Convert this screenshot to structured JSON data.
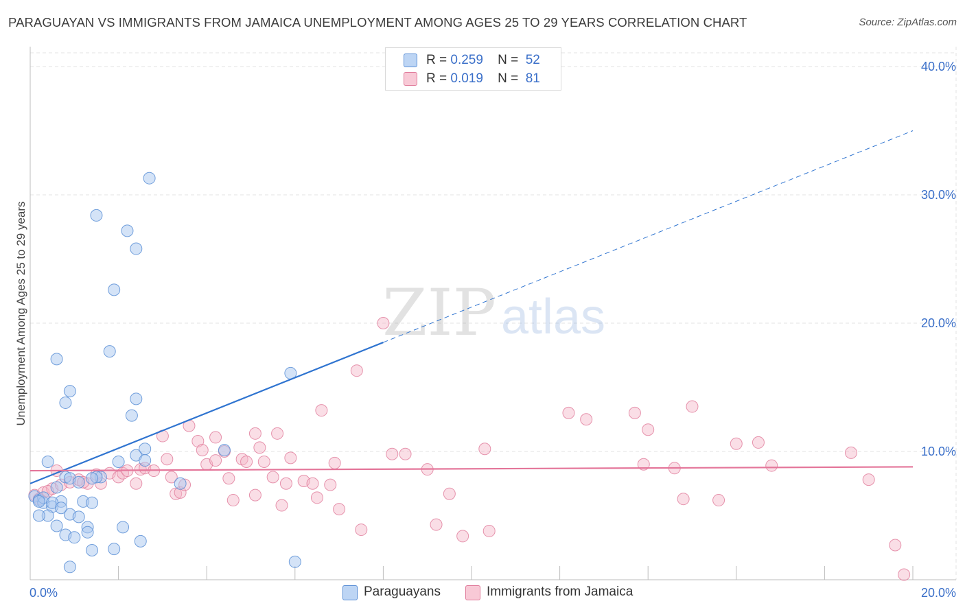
{
  "header": {
    "title": "PARAGUAYAN VS IMMIGRANTS FROM JAMAICA UNEMPLOYMENT AMONG AGES 25 TO 29 YEARS CORRELATION CHART",
    "source": "Source: ZipAtlas.com"
  },
  "legend": {
    "items": [
      {
        "r_label": "R =",
        "r_value": "0.259",
        "n_label": "N =",
        "n_value": "52"
      },
      {
        "r_label": "R =",
        "r_value": "0.019",
        "n_label": "N =",
        "n_value": "81"
      }
    ],
    "series_names": [
      "Paraguayans",
      "Immigrants from Jamaica"
    ]
  },
  "watermark": {
    "zip": "ZIP",
    "atlas": "atlas"
  },
  "colors": {
    "blue_fill": "#a9c8f0",
    "blue_stroke": "#5b8fd6",
    "blue_line": "#2f74d0",
    "pink_fill": "#f5b6c8",
    "pink_stroke": "#e07a9a",
    "pink_line": "#e4769a",
    "grid": "#e3e3e3",
    "tick_label": "#3a6fc9"
  },
  "chart_data": {
    "type": "scatter",
    "title": "PARAGUAYAN VS IMMIGRANTS FROM JAMAICA UNEMPLOYMENT AMONG AGES 25 TO 29 YEARS CORRELATION CHART",
    "xlabel": "",
    "ylabel": "Unemployment Among Ages 25 to 29 years",
    "xlim": [
      0,
      20
    ],
    "ylim": [
      0,
      40
    ],
    "x_tick_labels": [
      "0.0%",
      "20.0%"
    ],
    "y_ticks": [
      10,
      20,
      30,
      40
    ],
    "y_tick_labels": [
      "10.0%",
      "20.0%",
      "30.0%",
      "40.0%"
    ],
    "grid": true,
    "series": [
      {
        "name": "Paraguayans",
        "r": 0.259,
        "n": 52,
        "trend": {
          "x0": 0,
          "y0": 7.5,
          "x_solid_end": 8.0,
          "x1": 20,
          "y1": 35.0
        },
        "points": [
          [
            0.1,
            6.5
          ],
          [
            0.2,
            6.2
          ],
          [
            0.3,
            6.0
          ],
          [
            0.5,
            5.7
          ],
          [
            0.4,
            5.0
          ],
          [
            0.6,
            4.2
          ],
          [
            0.2,
            5.0
          ],
          [
            0.7,
            6.1
          ],
          [
            0.9,
            5.1
          ],
          [
            1.1,
            4.9
          ],
          [
            0.8,
            3.5
          ],
          [
            1.3,
            4.1
          ],
          [
            1.0,
            3.3
          ],
          [
            1.3,
            3.7
          ],
          [
            1.2,
            6.1
          ],
          [
            1.4,
            6.0
          ],
          [
            1.6,
            8.0
          ],
          [
            0.8,
            8.0
          ],
          [
            1.5,
            8.0
          ],
          [
            0.6,
            7.2
          ],
          [
            0.4,
            9.2
          ],
          [
            0.9,
            7.9
          ],
          [
            0.6,
            17.2
          ],
          [
            0.8,
            13.8
          ],
          [
            0.9,
            14.7
          ],
          [
            1.5,
            28.4
          ],
          [
            1.8,
            17.8
          ],
          [
            1.9,
            22.6
          ],
          [
            2.0,
            9.2
          ],
          [
            2.2,
            27.2
          ],
          [
            2.3,
            12.8
          ],
          [
            2.4,
            9.7
          ],
          [
            2.4,
            14.1
          ],
          [
            2.6,
            10.2
          ],
          [
            2.6,
            9.3
          ],
          [
            2.4,
            25.8
          ],
          [
            2.7,
            31.3
          ],
          [
            2.1,
            4.1
          ],
          [
            2.5,
            3.0
          ],
          [
            1.9,
            2.4
          ],
          [
            1.4,
            2.3
          ],
          [
            0.9,
            1.0
          ],
          [
            3.4,
            7.5
          ],
          [
            4.4,
            10.1
          ],
          [
            5.9,
            16.1
          ],
          [
            6.0,
            1.4
          ],
          [
            0.3,
            6.4
          ],
          [
            0.5,
            6.0
          ],
          [
            0.7,
            5.6
          ],
          [
            1.1,
            7.6
          ],
          [
            1.4,
            7.9
          ],
          [
            0.2,
            6.1
          ]
        ]
      },
      {
        "name": "Immigrants from Jamaica",
        "r": 0.019,
        "n": 81,
        "trend": {
          "x0": 0,
          "y0": 8.5,
          "x1": 20,
          "y1": 8.8
        },
        "points": [
          [
            0.1,
            6.6
          ],
          [
            0.3,
            6.8
          ],
          [
            0.5,
            7.1
          ],
          [
            0.7,
            7.4
          ],
          [
            0.9,
            7.6
          ],
          [
            1.1,
            7.8
          ],
          [
            1.3,
            7.5
          ],
          [
            1.5,
            8.2
          ],
          [
            1.6,
            7.5
          ],
          [
            1.8,
            8.3
          ],
          [
            2.0,
            8.0
          ],
          [
            2.1,
            8.3
          ],
          [
            2.2,
            8.5
          ],
          [
            2.4,
            7.5
          ],
          [
            2.5,
            8.6
          ],
          [
            2.6,
            8.7
          ],
          [
            2.8,
            8.5
          ],
          [
            3.0,
            11.2
          ],
          [
            3.2,
            8.0
          ],
          [
            3.3,
            6.7
          ],
          [
            3.4,
            6.8
          ],
          [
            3.5,
            7.4
          ],
          [
            3.1,
            9.4
          ],
          [
            3.6,
            12.0
          ],
          [
            3.8,
            10.8
          ],
          [
            3.9,
            10.1
          ],
          [
            4.0,
            9.0
          ],
          [
            4.2,
            9.3
          ],
          [
            4.2,
            11.1
          ],
          [
            4.4,
            10.0
          ],
          [
            4.5,
            7.9
          ],
          [
            4.6,
            6.2
          ],
          [
            4.8,
            9.4
          ],
          [
            4.9,
            9.2
          ],
          [
            5.1,
            6.6
          ],
          [
            5.1,
            11.4
          ],
          [
            5.2,
            10.3
          ],
          [
            5.3,
            9.2
          ],
          [
            5.5,
            8.0
          ],
          [
            5.6,
            11.4
          ],
          [
            5.7,
            5.8
          ],
          [
            5.8,
            7.5
          ],
          [
            5.9,
            9.5
          ],
          [
            6.2,
            7.7
          ],
          [
            6.4,
            7.5
          ],
          [
            6.5,
            6.4
          ],
          [
            6.6,
            13.2
          ],
          [
            6.8,
            7.4
          ],
          [
            6.9,
            9.1
          ],
          [
            7.0,
            5.5
          ],
          [
            7.4,
            16.3
          ],
          [
            7.5,
            3.9
          ],
          [
            8.0,
            20.0
          ],
          [
            8.2,
            9.8
          ],
          [
            8.5,
            9.8
          ],
          [
            9.0,
            8.6
          ],
          [
            9.2,
            4.3
          ],
          [
            9.5,
            6.7
          ],
          [
            9.8,
            3.4
          ],
          [
            10.3,
            10.2
          ],
          [
            10.4,
            3.8
          ],
          [
            12.2,
            13.0
          ],
          [
            12.6,
            12.5
          ],
          [
            13.7,
            13.0
          ],
          [
            13.9,
            9.0
          ],
          [
            14.0,
            11.7
          ],
          [
            14.6,
            8.7
          ],
          [
            14.8,
            6.3
          ],
          [
            15.0,
            13.5
          ],
          [
            15.6,
            6.2
          ],
          [
            16.0,
            10.6
          ],
          [
            16.5,
            10.7
          ],
          [
            16.8,
            8.9
          ],
          [
            18.6,
            9.9
          ],
          [
            19.0,
            7.8
          ],
          [
            19.6,
            2.7
          ],
          [
            19.8,
            0.4
          ],
          [
            0.2,
            6.3
          ],
          [
            0.4,
            6.9
          ],
          [
            0.6,
            8.5
          ],
          [
            1.2,
            7.6
          ]
        ]
      }
    ]
  }
}
